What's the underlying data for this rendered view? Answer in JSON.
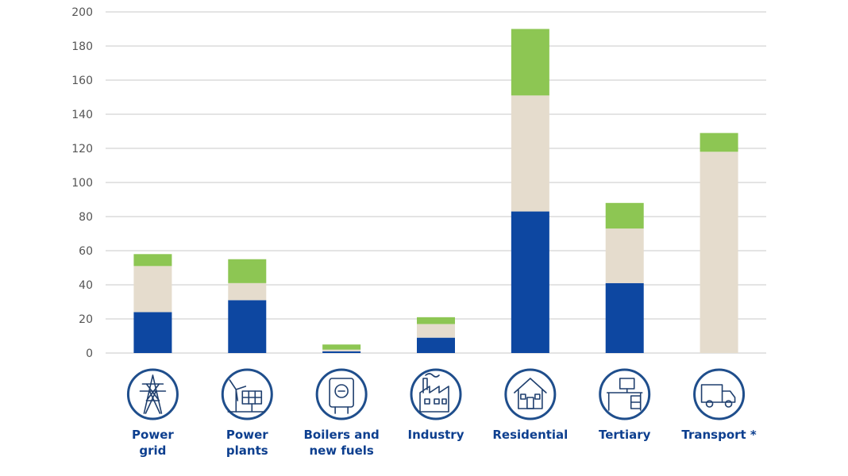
{
  "chart_data": {
    "type": "bar",
    "stacked": true,
    "categories": [
      [
        "Power",
        "grid"
      ],
      [
        "Power",
        "plants"
      ],
      [
        "Boilers and",
        "new fuels"
      ],
      [
        "Industry"
      ],
      [
        "Residential"
      ],
      [
        "Tertiary"
      ],
      [
        "Transport *"
      ]
    ],
    "category_icons": [
      "power-pylon-icon",
      "wind-solar-icon",
      "boiler-icon",
      "factory-icon",
      "house-icon",
      "office-desk-icon",
      "truck-icon"
    ],
    "series": [
      {
        "color": "#0d47a1",
        "values": [
          24,
          31,
          1,
          9,
          83,
          41,
          0
        ]
      },
      {
        "color": "#e5dccd",
        "values": [
          27,
          10,
          1,
          8,
          68,
          32,
          118
        ]
      },
      {
        "color": "#8dc653",
        "values": [
          7,
          14,
          3,
          4,
          39,
          15,
          11
        ]
      }
    ],
    "yticks": [
      0,
      20,
      40,
      60,
      80,
      100,
      120,
      140,
      160,
      180,
      200
    ],
    "ylim": [
      0,
      200
    ],
    "grid": true,
    "gridColor": "#d3d3d3",
    "title": "",
    "xlabel": "",
    "ylabel": ""
  }
}
